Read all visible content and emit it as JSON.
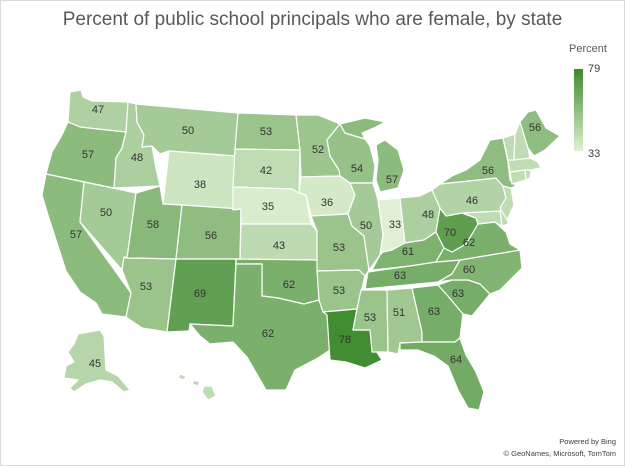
{
  "title": "Percent of public school principals who are female, by state",
  "legend": {
    "title": "Percent",
    "max_label": "79",
    "min_label": "33",
    "min": 33,
    "max": 79,
    "color_low": "#e0f0d4",
    "color_high": "#3e8a2e"
  },
  "attribution": {
    "line1": "Powered by Bing",
    "line2": "© GeoNames, Microsoft, TomTom"
  },
  "colors": {
    "border": "#ffffff"
  },
  "chart_data": {
    "type": "choropleth",
    "region": "United States",
    "states": [
      {
        "code": "WA",
        "value": 47
      },
      {
        "code": "OR",
        "value": 57
      },
      {
        "code": "CA",
        "value": 57
      },
      {
        "code": "ID",
        "value": 48
      },
      {
        "code": "NV",
        "value": 50
      },
      {
        "code": "MT",
        "value": 50
      },
      {
        "code": "WY",
        "value": 38
      },
      {
        "code": "UT",
        "value": 58
      },
      {
        "code": "AZ",
        "value": 53
      },
      {
        "code": "CO",
        "value": 56
      },
      {
        "code": "NM",
        "value": 69
      },
      {
        "code": "ND",
        "value": 53
      },
      {
        "code": "SD",
        "value": 42
      },
      {
        "code": "NE",
        "value": 35
      },
      {
        "code": "KS",
        "value": 43
      },
      {
        "code": "OK",
        "value": 62
      },
      {
        "code": "TX",
        "value": 62
      },
      {
        "code": "MN",
        "value": 52
      },
      {
        "code": "IA",
        "value": 36
      },
      {
        "code": "MO",
        "value": 53
      },
      {
        "code": "AR",
        "value": 53
      },
      {
        "code": "LA",
        "value": 78
      },
      {
        "code": "WI",
        "value": 54
      },
      {
        "code": "IL",
        "value": 50
      },
      {
        "code": "MI",
        "value": 57
      },
      {
        "code": "IN",
        "value": 33
      },
      {
        "code": "OH",
        "value": 48
      },
      {
        "code": "KY",
        "value": 61
      },
      {
        "code": "TN",
        "value": 63
      },
      {
        "code": "MS",
        "value": 53
      },
      {
        "code": "AL",
        "value": 51
      },
      {
        "code": "GA",
        "value": 63
      },
      {
        "code": "FL",
        "value": 64
      },
      {
        "code": "SC",
        "value": 63
      },
      {
        "code": "NC",
        "value": 60
      },
      {
        "code": "VA",
        "value": 62
      },
      {
        "code": "WV",
        "value": 70
      },
      {
        "code": "PA",
        "value": 46
      },
      {
        "code": "NY",
        "value": 56
      },
      {
        "code": "ME",
        "value": 56
      },
      {
        "code": "AK",
        "value": 45
      },
      {
        "code": "VT"
      },
      {
        "code": "NH"
      },
      {
        "code": "MA"
      },
      {
        "code": "CT"
      },
      {
        "code": "RI"
      },
      {
        "code": "NJ"
      },
      {
        "code": "DE"
      },
      {
        "code": "MD"
      },
      {
        "code": "HI"
      }
    ]
  }
}
